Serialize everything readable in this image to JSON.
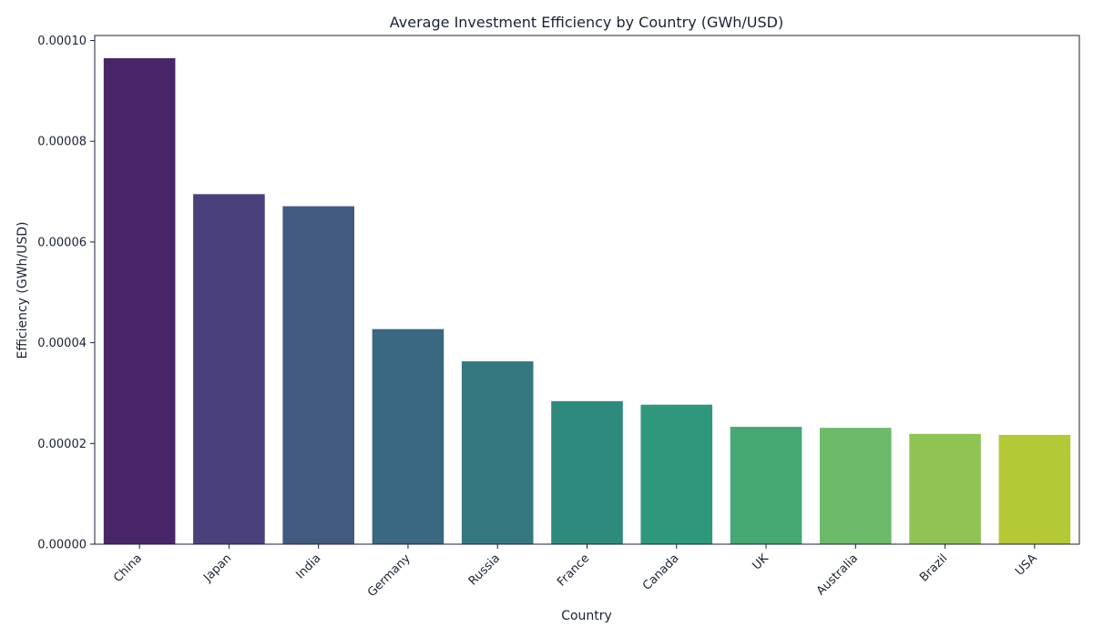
{
  "chart_data": {
    "type": "bar",
    "title": "Average Investment Efficiency by Country (GWh/USD)",
    "xlabel": "Country",
    "ylabel": "Efficiency (GWh/USD)",
    "ylim": [
      0,
      0.000101
    ],
    "yticks": [
      "0.00000",
      "0.00002",
      "0.00004",
      "0.00006",
      "0.00008",
      "0.00010"
    ],
    "ytick_values": [
      0,
      2e-05,
      4e-05,
      6e-05,
      8e-05,
      0.0001
    ],
    "grid": false,
    "legend": "none",
    "categories": [
      "China",
      "Japan",
      "India",
      "Germany",
      "Russia",
      "France",
      "Canada",
      "UK",
      "Australia",
      "Brazil",
      "USA"
    ],
    "values": [
      9.65e-05,
      6.95e-05,
      6.71e-05,
      4.27e-05,
      3.63e-05,
      2.84e-05,
      2.77e-05,
      2.33e-05,
      2.31e-05,
      2.19e-05,
      2.17e-05
    ],
    "colors": [
      "#482668",
      "#4a417c",
      "#435a80",
      "#3a6880",
      "#34777f",
      "#2e8a7c",
      "#2f987c",
      "#46a874",
      "#6cbb6a",
      "#8fc354",
      "#b5c836"
    ]
  }
}
